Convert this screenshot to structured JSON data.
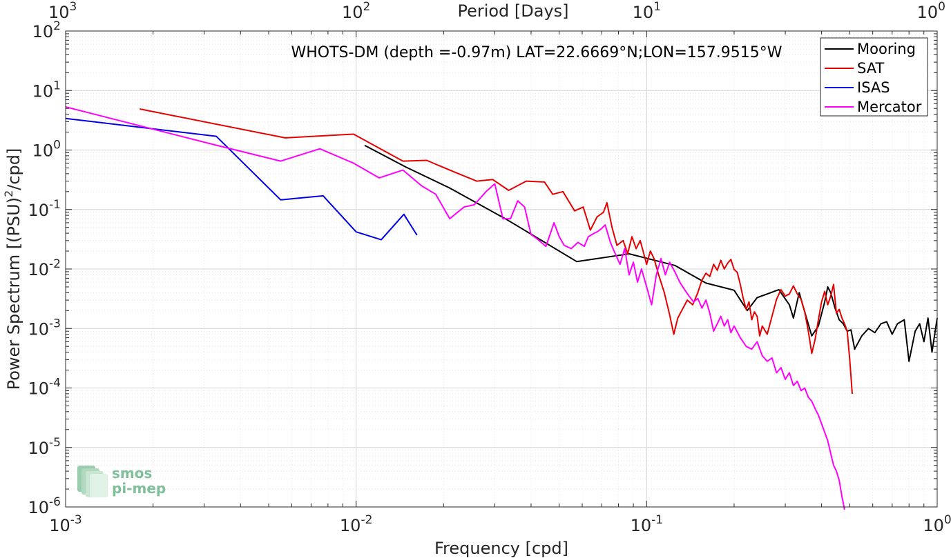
{
  "chart_data": {
    "type": "line",
    "title": "WHOTS-DM (depth =-0.97m) LAT=22.6669°N;LON=157.9515°W",
    "xlabel": "Frequency [cpd]",
    "ylabel": "Power Spectrum [(PSU)²/cpd]",
    "top_xlabel": "Period [Days]",
    "x_scale": "log",
    "y_scale": "log",
    "xlim": [
      0.001,
      1
    ],
    "ylim": [
      1e-06,
      100
    ],
    "grid": true,
    "legend_position": "top-right",
    "x_ticks": [
      {
        "value": 0.001,
        "base": "10",
        "exp": "-3"
      },
      {
        "value": 0.01,
        "base": "10",
        "exp": "-2"
      },
      {
        "value": 0.1,
        "base": "10",
        "exp": "-1"
      },
      {
        "value": 1,
        "base": "10",
        "exp": "0"
      }
    ],
    "top_ticks": [
      {
        "value": 0.001,
        "base": "10",
        "exp": "3"
      },
      {
        "value": 0.01,
        "base": "10",
        "exp": "2"
      },
      {
        "value": 0.1,
        "base": "10",
        "exp": "1"
      },
      {
        "value": 1,
        "base": "10",
        "exp": "0"
      }
    ],
    "y_ticks": [
      {
        "value": 100,
        "base": "10",
        "exp": "2"
      },
      {
        "value": 10,
        "base": "10",
        "exp": "1"
      },
      {
        "value": 1,
        "base": "10",
        "exp": "0"
      },
      {
        "value": 0.1,
        "base": "10",
        "exp": "-1"
      },
      {
        "value": 0.01,
        "base": "10",
        "exp": "-2"
      },
      {
        "value": 0.001,
        "base": "10",
        "exp": "-3"
      },
      {
        "value": 0.0001,
        "base": "10",
        "exp": "-4"
      },
      {
        "value": 1e-05,
        "base": "10",
        "exp": "-5"
      },
      {
        "value": 1e-06,
        "base": "10",
        "exp": "-6"
      }
    ],
    "series": [
      {
        "name": "Mooring",
        "color": "#000000",
        "points": [
          [
            0.0107,
            1.2
          ],
          [
            0.0148,
            0.52
          ],
          [
            0.021,
            0.23
          ],
          [
            0.0333,
            0.066
          ],
          [
            0.0575,
            0.0133
          ],
          [
            0.087,
            0.018
          ],
          [
            0.125,
            0.0115
          ],
          [
            0.16,
            0.0058
          ],
          [
            0.2,
            0.0044
          ],
          [
            0.222,
            0.002
          ],
          [
            0.24,
            0.0033
          ],
          [
            0.26,
            0.0038
          ],
          [
            0.285,
            0.0045
          ],
          [
            0.31,
            0.0025
          ],
          [
            0.32,
            0.0015
          ],
          [
            0.335,
            0.004
          ],
          [
            0.355,
            0.0015
          ],
          [
            0.37,
            0.00075
          ],
          [
            0.39,
            0.0011
          ],
          [
            0.41,
            0.0028
          ],
          [
            0.42,
            0.005
          ],
          [
            0.43,
            0.004
          ],
          [
            0.445,
            0.0022
          ],
          [
            0.46,
            0.0014
          ],
          [
            0.475,
            0.0012
          ],
          [
            0.49,
            0.0009
          ],
          [
            0.505,
            0.00095
          ],
          [
            0.52,
            0.00045
          ],
          [
            0.55,
            0.00075
          ],
          [
            0.58,
            0.001
          ],
          [
            0.61,
            0.00085
          ],
          [
            0.64,
            0.0012
          ],
          [
            0.67,
            0.0013
          ],
          [
            0.7,
            0.0008
          ],
          [
            0.73,
            0.0012
          ],
          [
            0.77,
            0.0014
          ],
          [
            0.8,
            0.00028
          ],
          [
            0.84,
            0.0009
          ],
          [
            0.87,
            0.0012
          ],
          [
            0.9,
            0.0006
          ],
          [
            0.93,
            0.0015
          ],
          [
            0.96,
            0.0004
          ],
          [
            1.0,
            0.0015
          ]
        ]
      },
      {
        "name": "SAT",
        "color": "#e60000",
        "points": [
          [
            0.0018,
            4.9
          ],
          [
            0.0057,
            1.6
          ],
          [
            0.0098,
            1.85
          ],
          [
            0.0145,
            0.65
          ],
          [
            0.0175,
            0.67
          ],
          [
            0.021,
            0.46
          ],
          [
            0.026,
            0.3
          ],
          [
            0.0295,
            0.32
          ],
          [
            0.0335,
            0.21
          ],
          [
            0.0385,
            0.3
          ],
          [
            0.0445,
            0.29
          ],
          [
            0.0475,
            0.18
          ],
          [
            0.0515,
            0.2
          ],
          [
            0.0565,
            0.095
          ],
          [
            0.0605,
            0.11
          ],
          [
            0.064,
            0.045
          ],
          [
            0.0675,
            0.075
          ],
          [
            0.071,
            0.09
          ],
          [
            0.073,
            0.13
          ],
          [
            0.076,
            0.05
          ],
          [
            0.079,
            0.025
          ],
          [
            0.083,
            0.03
          ],
          [
            0.086,
            0.018
          ],
          [
            0.089,
            0.035
          ],
          [
            0.092,
            0.022
          ],
          [
            0.095,
            0.03
          ],
          [
            0.1,
            0.012
          ],
          [
            0.103,
            0.02
          ],
          [
            0.106,
            0.015
          ],
          [
            0.11,
            0.008
          ],
          [
            0.115,
            0.004
          ],
          [
            0.12,
            0.0017
          ],
          [
            0.124,
            0.0008
          ],
          [
            0.128,
            0.0015
          ],
          [
            0.132,
            0.002
          ],
          [
            0.138,
            0.003
          ],
          [
            0.144,
            0.0025
          ],
          [
            0.15,
            0.004
          ],
          [
            0.155,
            0.0065
          ],
          [
            0.16,
            0.0085
          ],
          [
            0.165,
            0.0075
          ],
          [
            0.17,
            0.012
          ],
          [
            0.175,
            0.0095
          ],
          [
            0.18,
            0.014
          ],
          [
            0.185,
            0.01
          ],
          [
            0.19,
            0.0125
          ],
          [
            0.195,
            0.0145
          ],
          [
            0.2,
            0.0098
          ],
          [
            0.205,
            0.0088
          ],
          [
            0.21,
            0.0055
          ],
          [
            0.215,
            0.0032
          ],
          [
            0.22,
            0.0021
          ],
          [
            0.225,
            0.0028
          ],
          [
            0.23,
            0.0014
          ],
          [
            0.235,
            0.0019
          ],
          [
            0.24,
            0.0016
          ],
          [
            0.245,
            0.00075
          ],
          [
            0.25,
            0.0011
          ],
          [
            0.26,
            0.0008
          ],
          [
            0.27,
            0.0016
          ],
          [
            0.28,
            0.0031
          ],
          [
            0.29,
            0.0045
          ],
          [
            0.3,
            0.0035
          ],
          [
            0.31,
            0.0038
          ],
          [
            0.32,
            0.0052
          ],
          [
            0.33,
            0.0038
          ],
          [
            0.34,
            0.0031
          ],
          [
            0.35,
            0.0019
          ],
          [
            0.36,
            0.0009
          ],
          [
            0.37,
            0.00038
          ],
          [
            0.38,
            0.00065
          ],
          [
            0.39,
            0.0014
          ],
          [
            0.4,
            0.0028
          ],
          [
            0.41,
            0.0042
          ],
          [
            0.42,
            0.0025
          ],
          [
            0.43,
            0.0035
          ],
          [
            0.44,
            0.0055
          ],
          [
            0.45,
            0.0018
          ],
          [
            0.46,
            0.0021
          ],
          [
            0.47,
            0.0015
          ],
          [
            0.48,
            0.0012
          ],
          [
            0.49,
            0.0009
          ],
          [
            0.5,
            0.0003
          ],
          [
            0.51,
            8e-05
          ]
        ]
      },
      {
        "name": "ISAS",
        "color": "#0000e6",
        "points": [
          [
            0.001,
            3.4
          ],
          [
            0.0033,
            1.7
          ],
          [
            0.0055,
            0.145
          ],
          [
            0.0077,
            0.17
          ],
          [
            0.01,
            0.042
          ],
          [
            0.0122,
            0.031
          ],
          [
            0.0146,
            0.083
          ],
          [
            0.0162,
            0.037
          ]
        ]
      },
      {
        "name": "Mercator",
        "color": "#ff00ff",
        "points": [
          [
            0.001,
            5.3
          ],
          [
            0.0032,
            1.25
          ],
          [
            0.0055,
            0.65
          ],
          [
            0.0075,
            1.05
          ],
          [
            0.0098,
            0.6
          ],
          [
            0.012,
            0.34
          ],
          [
            0.0145,
            0.46
          ],
          [
            0.0168,
            0.25
          ],
          [
            0.0188,
            0.18
          ],
          [
            0.021,
            0.07
          ],
          [
            0.0235,
            0.11
          ],
          [
            0.0255,
            0.12
          ],
          [
            0.028,
            0.2
          ],
          [
            0.03,
            0.27
          ],
          [
            0.032,
            0.07
          ],
          [
            0.034,
            0.07
          ],
          [
            0.036,
            0.14
          ],
          [
            0.038,
            0.11
          ],
          [
            0.04,
            0.038
          ],
          [
            0.042,
            0.032
          ],
          [
            0.045,
            0.024
          ],
          [
            0.048,
            0.06
          ],
          [
            0.05,
            0.035
          ],
          [
            0.052,
            0.025
          ],
          [
            0.055,
            0.022
          ],
          [
            0.058,
            0.028
          ],
          [
            0.061,
            0.024
          ],
          [
            0.063,
            0.035
          ],
          [
            0.066,
            0.04
          ],
          [
            0.068,
            0.043
          ],
          [
            0.07,
            0.048
          ],
          [
            0.072,
            0.055
          ],
          [
            0.075,
            0.028
          ],
          [
            0.078,
            0.018
          ],
          [
            0.081,
            0.012
          ],
          [
            0.084,
            0.022
          ],
          [
            0.087,
            0.008
          ],
          [
            0.09,
            0.013
          ],
          [
            0.093,
            0.006
          ],
          [
            0.096,
            0.01
          ],
          [
            0.1,
            0.005
          ],
          [
            0.104,
            0.0025
          ],
          [
            0.108,
            0.008
          ],
          [
            0.112,
            0.015
          ],
          [
            0.116,
            0.008
          ],
          [
            0.12,
            0.013
          ],
          [
            0.125,
            0.009
          ],
          [
            0.13,
            0.006
          ],
          [
            0.135,
            0.0045
          ],
          [
            0.14,
            0.0035
          ],
          [
            0.145,
            0.0028
          ],
          [
            0.15,
            0.0032
          ],
          [
            0.155,
            0.0022
          ],
          [
            0.16,
            0.003
          ],
          [
            0.165,
            0.0018
          ],
          [
            0.17,
            0.0009
          ],
          [
            0.175,
            0.0012
          ],
          [
            0.18,
            0.0016
          ],
          [
            0.185,
            0.0011
          ],
          [
            0.19,
            0.0014
          ],
          [
            0.195,
            0.00085
          ],
          [
            0.2,
            0.0011
          ],
          [
            0.21,
            0.0007
          ],
          [
            0.22,
            0.0005
          ],
          [
            0.23,
            0.00045
          ],
          [
            0.24,
            0.0006
          ],
          [
            0.25,
            0.00035
          ],
          [
            0.26,
            0.00028
          ],
          [
            0.27,
            0.00032
          ],
          [
            0.28,
            0.00018
          ],
          [
            0.29,
            0.00022
          ],
          [
            0.3,
            0.00014
          ],
          [
            0.31,
            0.00018
          ],
          [
            0.32,
            0.00011
          ],
          [
            0.33,
            0.00013
          ],
          [
            0.34,
            9e-05
          ],
          [
            0.35,
            0.0001
          ],
          [
            0.36,
            7e-05
          ],
          [
            0.37,
            6e-05
          ],
          [
            0.38,
            4.5e-05
          ],
          [
            0.39,
            3.5e-05
          ],
          [
            0.4,
            2.5e-05
          ],
          [
            0.41,
            1.8e-05
          ],
          [
            0.42,
            1.3e-05
          ],
          [
            0.43,
            8e-06
          ],
          [
            0.44,
            5e-06
          ],
          [
            0.45,
            4e-06
          ],
          [
            0.46,
            2.8e-06
          ],
          [
            0.47,
            1.5e-06
          ],
          [
            0.48,
            9e-07
          ]
        ]
      }
    ]
  },
  "logo": {
    "line1": "smos",
    "line2": "pi-mep",
    "color": "#7fbf9a"
  }
}
